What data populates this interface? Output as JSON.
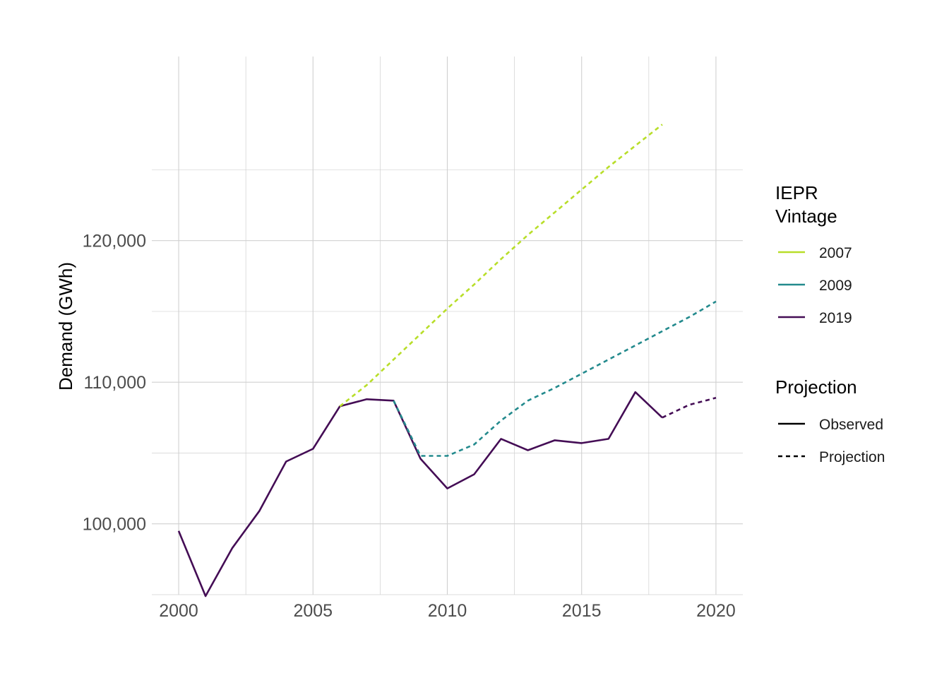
{
  "chart_data": {
    "type": "line",
    "title": "",
    "xlabel": "",
    "ylabel": "Demand (GWh)",
    "xlim": [
      1999,
      2021
    ],
    "ylim": [
      95000,
      133000
    ],
    "x_ticks": [
      2000,
      2005,
      2010,
      2015,
      2020
    ],
    "x_tick_labels": [
      "2000",
      "2005",
      "2010",
      "2015",
      "2020"
    ],
    "y_ticks": [
      100000,
      110000,
      120000
    ],
    "y_tick_labels": [
      "100,000",
      "110,000",
      "120,000"
    ],
    "grid": true,
    "legend_position": "right",
    "legends": [
      {
        "title": "IEPR\nVintage",
        "title_lines": [
          "IEPR",
          "Vintage"
        ],
        "entries": [
          {
            "label": "2007",
            "color": "#b8de29"
          },
          {
            "label": "2009",
            "color": "#238a8d"
          },
          {
            "label": "2019",
            "color": "#440d55"
          }
        ]
      },
      {
        "title": "Projection",
        "title_lines": [
          "Projection"
        ],
        "entries": [
          {
            "label": "Observed",
            "linetype": "solid"
          },
          {
            "label": "Projection",
            "linetype": "dashed"
          }
        ]
      }
    ],
    "series": [
      {
        "name": "2019",
        "vintage": "2019",
        "linetype": "solid",
        "color": "#440d55",
        "x": [
          2000,
          2001,
          2002,
          2003,
          2004,
          2005,
          2006,
          2007,
          2008,
          2009,
          2010,
          2011,
          2012,
          2013,
          2014,
          2015,
          2016,
          2017,
          2018
        ],
        "y": [
          99500,
          94900,
          98300,
          100900,
          104400,
          105300,
          108300,
          108800,
          108700,
          104600,
          102500,
          103500,
          106000,
          105200,
          105900,
          105700,
          106000,
          109300,
          107500
        ]
      },
      {
        "name": "2019",
        "vintage": "2019",
        "linetype": "dashed",
        "color": "#440d55",
        "x": [
          2018,
          2019,
          2020
        ],
        "y": [
          107500,
          108400,
          108900
        ]
      },
      {
        "name": "2009",
        "vintage": "2009",
        "linetype": "dashed",
        "color": "#238a8d",
        "x": [
          2008,
          2009,
          2010,
          2011,
          2012,
          2013,
          2014,
          2015,
          2016,
          2017,
          2018,
          2019,
          2020
        ],
        "y": [
          108700,
          104800,
          104800,
          105600,
          107300,
          108700,
          109600,
          110600,
          111600,
          112600,
          113600,
          114600,
          115700
        ]
      },
      {
        "name": "2007",
        "vintage": "2007",
        "linetype": "dashed",
        "color": "#b8de29",
        "x": [
          2006,
          2007,
          2008,
          2009,
          2010,
          2011,
          2012,
          2013,
          2014,
          2015,
          2016,
          2017,
          2018
        ],
        "y": [
          108300,
          109800,
          111600,
          113400,
          115200,
          116900,
          118700,
          120400,
          122000,
          123600,
          125200,
          126700,
          128200
        ]
      }
    ]
  }
}
